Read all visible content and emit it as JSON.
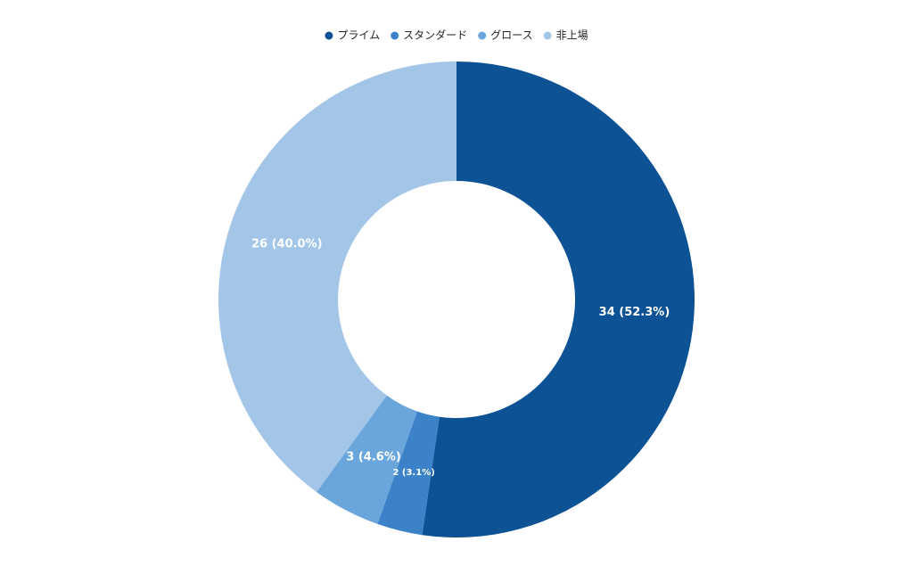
{
  "chart_data": {
    "type": "donut",
    "categories": [
      "プライム",
      "スタンダード",
      "グロース",
      "非上場"
    ],
    "values": [
      34,
      2,
      3,
      26
    ],
    "value_labels": [
      "34 (52.3%)",
      "2 (3.1%)",
      "3 (4.6%)",
      "26 (40.0%)"
    ],
    "colors": [
      "#0d5295",
      "#3b82c8",
      "#6aa6dc",
      "#a3c6e8"
    ],
    "legend": "top"
  }
}
